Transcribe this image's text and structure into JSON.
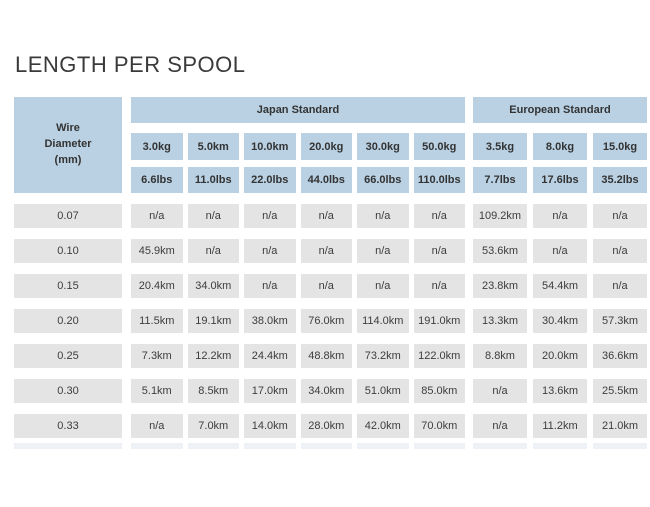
{
  "page_title": "LENGTH PER SPOOL",
  "table": {
    "wire_header": [
      "Wire",
      "Diameter",
      "(mm)"
    ],
    "groups": [
      {
        "label": "Japan Standard",
        "kg": [
          "3.0kg",
          "5.0km",
          "10.0km",
          "20.0kg",
          "30.0kg",
          "50.0kg"
        ],
        "lbs": [
          "6.6lbs",
          "11.0lbs",
          "22.0lbs",
          "44.0lbs",
          "66.0lbs",
          "110.0lbs"
        ]
      },
      {
        "label": "European Standard",
        "kg": [
          "3.5kg",
          "8.0kg",
          "15.0kg"
        ],
        "lbs": [
          "7.7lbs",
          "17.6lbs",
          "35.2lbs"
        ]
      }
    ],
    "rows": [
      {
        "diameter": "0.07",
        "japan": [
          "n/a",
          "n/a",
          "n/a",
          "n/a",
          "n/a",
          "n/a"
        ],
        "european": [
          "109.2km",
          "n/a",
          "n/a"
        ]
      },
      {
        "diameter": "0.10",
        "japan": [
          "45.9km",
          "n/a",
          "n/a",
          "n/a",
          "n/a",
          "n/a"
        ],
        "european": [
          "53.6km",
          "n/a",
          "n/a"
        ]
      },
      {
        "diameter": "0.15",
        "japan": [
          "20.4km",
          "34.0km",
          "n/a",
          "n/a",
          "n/a",
          "n/a"
        ],
        "european": [
          "23.8km",
          "54.4km",
          "n/a"
        ]
      },
      {
        "diameter": "0.20",
        "japan": [
          "11.5km",
          "19.1km",
          "38.0km",
          "76.0km",
          "114.0km",
          "191.0km"
        ],
        "european": [
          "13.3km",
          "30.4km",
          "57.3km"
        ]
      },
      {
        "diameter": "0.25",
        "japan": [
          "7.3km",
          "12.2km",
          "24.4km",
          "48.8km",
          "73.2km",
          "122.0km"
        ],
        "european": [
          "8.8km",
          "20.0km",
          "36.6km"
        ]
      },
      {
        "diameter": "0.30",
        "japan": [
          "5.1km",
          "8.5km",
          "17.0km",
          "34.0km",
          "51.0km",
          "85.0km"
        ],
        "european": [
          "n/a",
          "13.6km",
          "25.5km"
        ]
      },
      {
        "diameter": "0.33",
        "japan": [
          "n/a",
          "7.0km",
          "14.0km",
          "28.0km",
          "42.0km",
          "70.0km"
        ],
        "european": [
          "n/a",
          "11.2km",
          "21.0km"
        ]
      }
    ]
  },
  "colors": {
    "header_blue": "#b9d1e3",
    "cell_gray": "#e4e4e4",
    "cropped_row_tint": "#eef1f6",
    "text_dark": "#3a3a3a",
    "background": "#ffffff"
  },
  "chart_data": {
    "type": "table",
    "title": "LENGTH PER SPOOL",
    "row_header": "Wire Diameter (mm)",
    "column_groups": [
      {
        "group": "Japan Standard",
        "columns": [
          "3.0kg / 6.6lbs",
          "5.0km / 11.0lbs",
          "10.0km / 22.0lbs",
          "20.0kg / 44.0lbs",
          "30.0kg / 66.0lbs",
          "50.0kg / 110.0lbs"
        ]
      },
      {
        "group": "European Standard",
        "columns": [
          "3.5kg / 7.7lbs",
          "8.0kg / 17.6lbs",
          "15.0kg / 35.2lbs"
        ]
      }
    ],
    "rows": [
      {
        "wire_diameter_mm": "0.07",
        "values": [
          "n/a",
          "n/a",
          "n/a",
          "n/a",
          "n/a",
          "n/a",
          "109.2km",
          "n/a",
          "n/a"
        ]
      },
      {
        "wire_diameter_mm": "0.10",
        "values": [
          "45.9km",
          "n/a",
          "n/a",
          "n/a",
          "n/a",
          "n/a",
          "53.6km",
          "n/a",
          "n/a"
        ]
      },
      {
        "wire_diameter_mm": "0.15",
        "values": [
          "20.4km",
          "34.0km",
          "n/a",
          "n/a",
          "n/a",
          "n/a",
          "23.8km",
          "54.4km",
          "n/a"
        ]
      },
      {
        "wire_diameter_mm": "0.20",
        "values": [
          "11.5km",
          "19.1km",
          "38.0km",
          "76.0km",
          "114.0km",
          "191.0km",
          "13.3km",
          "30.4km",
          "57.3km"
        ]
      },
      {
        "wire_diameter_mm": "0.25",
        "values": [
          "7.3km",
          "12.2km",
          "24.4km",
          "48.8km",
          "73.2km",
          "122.0km",
          "8.8km",
          "20.0km",
          "36.6km"
        ]
      },
      {
        "wire_diameter_mm": "0.30",
        "values": [
          "5.1km",
          "8.5km",
          "17.0km",
          "34.0km",
          "51.0km",
          "85.0km",
          "n/a",
          "13.6km",
          "25.5km"
        ]
      },
      {
        "wire_diameter_mm": "0.33",
        "values": [
          "n/a",
          "7.0km",
          "14.0km",
          "28.0km",
          "42.0km",
          "70.0km",
          "n/a",
          "11.2km",
          "21.0km"
        ]
      }
    ]
  }
}
